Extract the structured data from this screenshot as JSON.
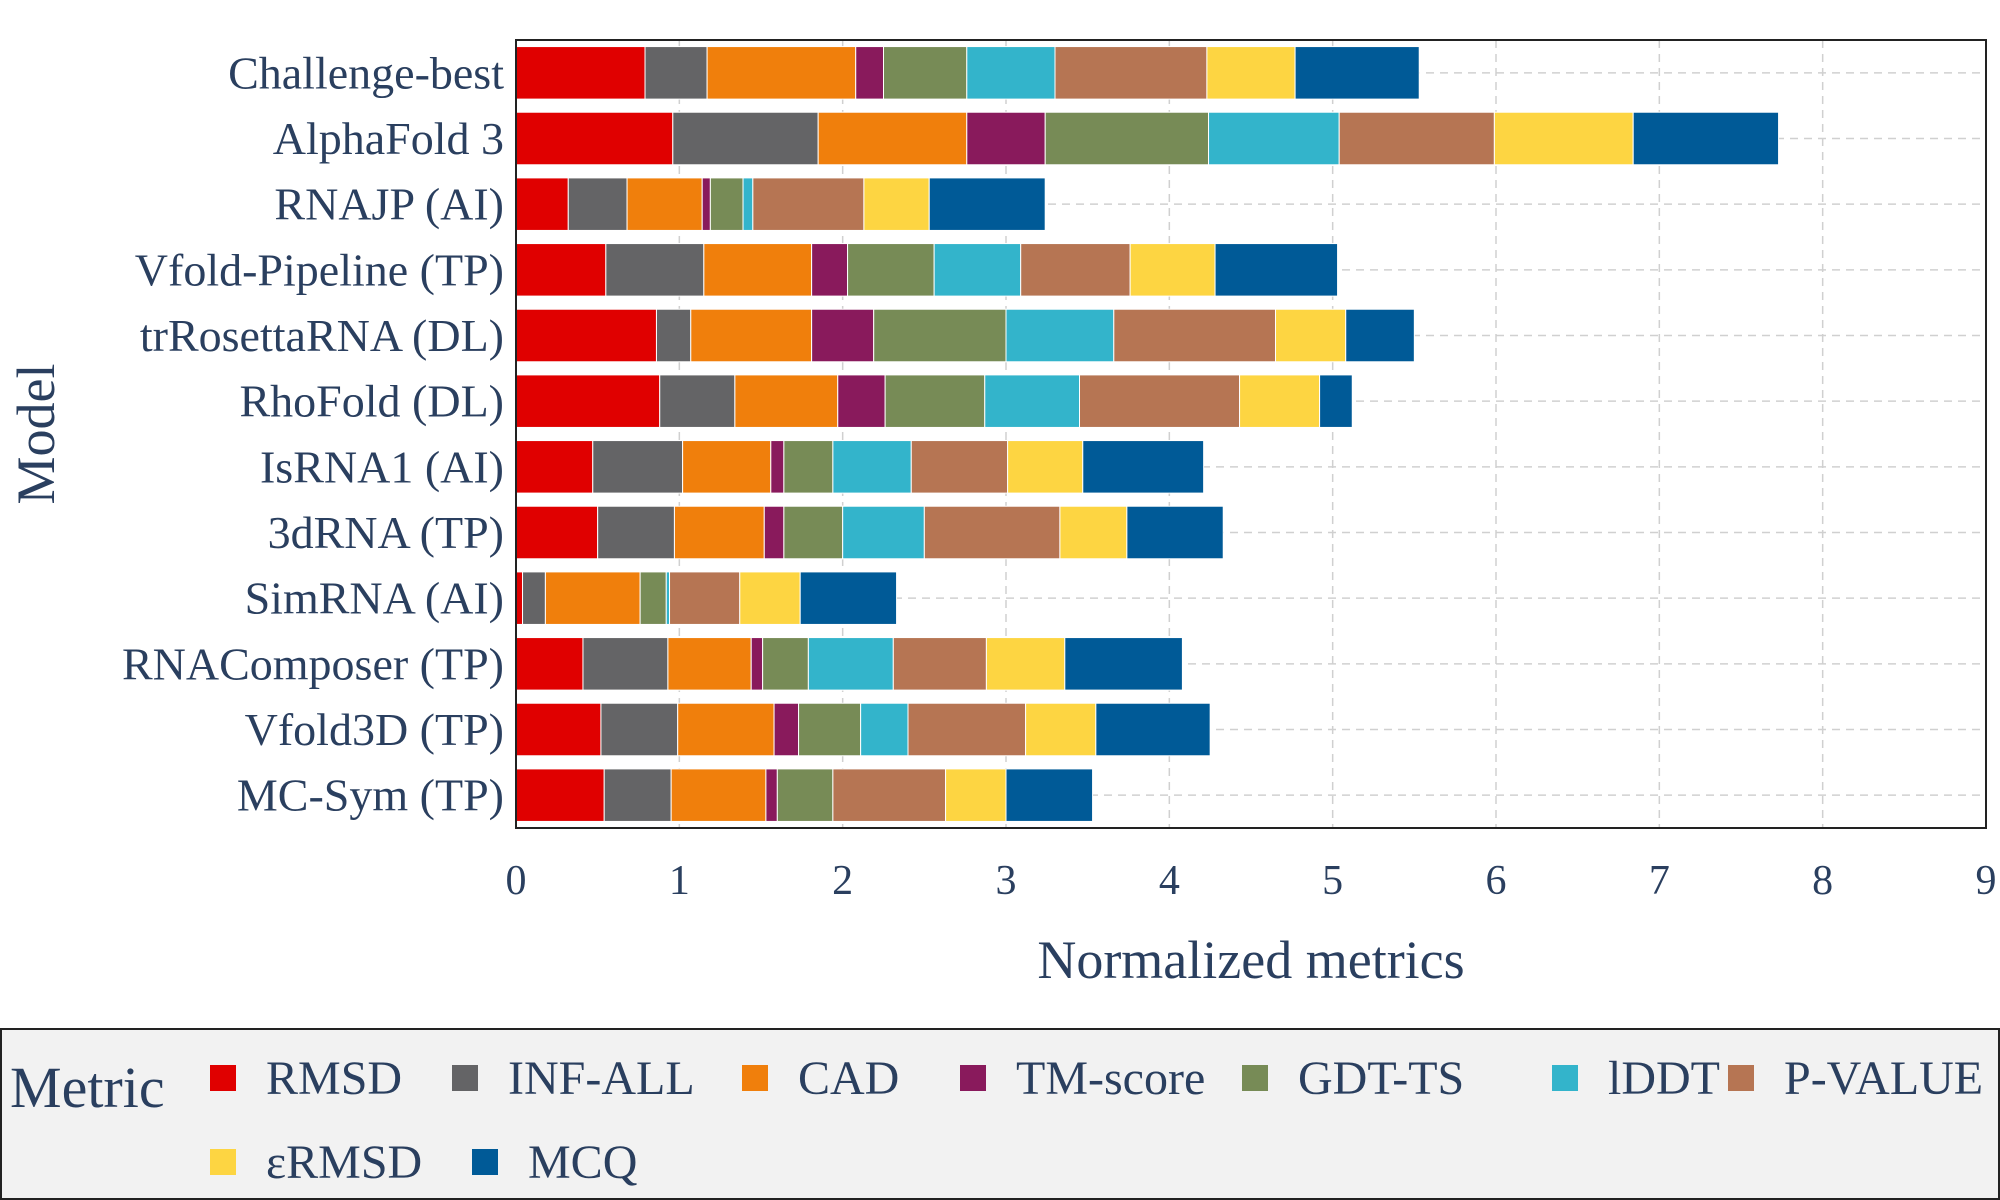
{
  "chart_data": {
    "type": "bar",
    "orientation": "horizontal",
    "stacked": true,
    "xlabel": "Normalized metrics",
    "ylabel": "Model",
    "xlim": [
      0,
      9
    ],
    "x_ticks": [
      "0",
      "1",
      "2",
      "3",
      "4",
      "5",
      "6",
      "7",
      "8",
      "9"
    ],
    "grid": true,
    "categories": [
      "Challenge-best",
      "AlphaFold 3",
      "RNAJP (AI)",
      "Vfold-Pipeline (TP)",
      "trRosettaRNA (DL)",
      "RhoFold (DL)",
      "IsRNA1 (AI)",
      "3dRNA (TP)",
      "SimRNA (AI)",
      "RNAComposer (TP)",
      "Vfold3D (TP)",
      "MC-Sym (TP)"
    ],
    "series": [
      {
        "name": "RMSD",
        "color": "#e00000",
        "values": [
          0.79,
          0.96,
          0.32,
          0.55,
          0.86,
          0.88,
          0.47,
          0.5,
          0.04,
          0.41,
          0.52,
          0.54
        ]
      },
      {
        "name": "INF-ALL",
        "color": "#646466",
        "values": [
          0.38,
          0.89,
          0.36,
          0.6,
          0.21,
          0.46,
          0.55,
          0.47,
          0.14,
          0.52,
          0.47,
          0.41
        ]
      },
      {
        "name": "CAD",
        "color": "#f07f0c",
        "values": [
          0.91,
          0.91,
          0.46,
          0.66,
          0.74,
          0.63,
          0.54,
          0.55,
          0.58,
          0.51,
          0.59,
          0.58
        ]
      },
      {
        "name": "TM-score",
        "color": "#891a5c",
        "values": [
          0.17,
          0.48,
          0.05,
          0.22,
          0.38,
          0.29,
          0.08,
          0.12,
          0.0,
          0.07,
          0.15,
          0.07
        ]
      },
      {
        "name": "GDT-TS",
        "color": "#778b56",
        "values": [
          0.51,
          1.0,
          0.2,
          0.53,
          0.81,
          0.61,
          0.3,
          0.36,
          0.16,
          0.28,
          0.38,
          0.34
        ]
      },
      {
        "name": "lDDT",
        "color": "#33b4cb",
        "values": [
          0.54,
          0.8,
          0.06,
          0.53,
          0.66,
          0.58,
          0.48,
          0.5,
          0.02,
          0.52,
          0.29,
          0.0
        ]
      },
      {
        "name": "P-VALUE",
        "color": "#b67553",
        "values": [
          0.93,
          0.95,
          0.68,
          0.67,
          0.99,
          0.98,
          0.59,
          0.83,
          0.43,
          0.57,
          0.72,
          0.69
        ]
      },
      {
        "name": "εRMSD",
        "color": "#fdd542",
        "values": [
          0.54,
          0.85,
          0.4,
          0.52,
          0.43,
          0.49,
          0.46,
          0.41,
          0.37,
          0.48,
          0.43,
          0.37
        ]
      },
      {
        "name": "MCQ",
        "color": "#005a97",
        "values": [
          0.76,
          0.89,
          0.71,
          0.75,
          0.42,
          0.2,
          0.74,
          0.59,
          0.59,
          0.72,
          0.7,
          0.53
        ]
      }
    ]
  },
  "legend": {
    "title": "Metric"
  }
}
